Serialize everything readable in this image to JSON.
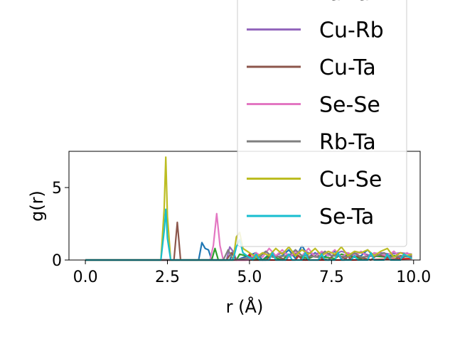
{
  "chart_data": {
    "type": "line",
    "title": "",
    "xlabel": "r (Å)",
    "ylabel": "g(r)",
    "xlim": [
      -0.5,
      10.2
    ],
    "ylim": [
      0,
      7.5
    ],
    "xticks": [
      0.0,
      2.5,
      5.0,
      7.5,
      10.0
    ],
    "xtick_labels": [
      "0.0",
      "2.5",
      "5.0",
      "7.5",
      "10.0"
    ],
    "yticks": [
      0,
      5
    ],
    "ytick_labels": [
      "0",
      "5"
    ],
    "grid": false,
    "legend_position": "upper-right (overflowing top)",
    "series": [
      {
        "name": "",
        "color": "#1f77b4",
        "x": [
          0,
          3.45,
          3.55,
          3.65,
          3.75,
          3.85,
          4.4,
          4.5,
          4.6,
          5.2,
          5.4,
          5.6,
          5.8,
          6.0,
          6.2,
          6.4,
          6.6,
          6.8,
          7.0,
          7.2,
          7.4,
          7.6,
          7.8,
          8.0,
          8.2,
          8.4,
          8.6,
          8.8,
          9.0,
          9.2,
          9.4,
          9.6,
          9.8,
          9.95
        ],
        "y": [
          0,
          0,
          1.2,
          0.8,
          0.7,
          0,
          0,
          0.6,
          0,
          0.5,
          0,
          0.4,
          0.2,
          0.3,
          0.7,
          0.1,
          1.0,
          0.2,
          0.5,
          0.1,
          0.4,
          0.6,
          0.1,
          0.4,
          0.2,
          0.3,
          0.7,
          0.2,
          0.4,
          0.1,
          0.6,
          0.1,
          0.3,
          0.2
        ]
      },
      {
        "name": "",
        "color": "#2ca02c",
        "x": [
          0,
          3.85,
          3.95,
          4.05,
          4.6,
          4.7,
          5.4,
          5.6,
          6.0,
          6.2,
          6.8,
          7.0,
          7.6,
          7.8,
          8.4,
          8.6,
          9.2,
          9.4,
          9.95
        ],
        "y": [
          0,
          0,
          0.8,
          0,
          0,
          0.4,
          0,
          0.3,
          0,
          0.4,
          0.1,
          0.3,
          0.1,
          0.4,
          0.1,
          0.3,
          0.2,
          0.3,
          0.2
        ]
      },
      {
        "name": "Ta-Ta",
        "color": "#d62728",
        "x": [
          0,
          4.9,
          5.0,
          5.1,
          6.4,
          6.5,
          6.6,
          7.9,
          8.0,
          8.1,
          9.95
        ],
        "y": [
          0,
          0,
          0.4,
          0,
          0,
          0.3,
          0,
          0,
          0.3,
          0,
          0.1
        ]
      },
      {
        "name": "Cu-Rb",
        "color": "#9467bd",
        "x": [
          0,
          4.3,
          4.4,
          4.5,
          4.6,
          5.3,
          5.5,
          5.7,
          6.0,
          6.3,
          6.6,
          6.9,
          7.2,
          7.5,
          7.8,
          8.1,
          8.4,
          8.7,
          9.0,
          9.3,
          9.6,
          9.95
        ],
        "y": [
          0,
          0,
          0.9,
          0.6,
          0,
          0.3,
          0.6,
          0.2,
          0.5,
          0.3,
          0.7,
          0.4,
          0.5,
          0.3,
          0.6,
          0.4,
          0.5,
          0.3,
          0.5,
          0.4,
          0.5,
          0.4
        ]
      },
      {
        "name": "Cu-Ta",
        "color": "#8c564b",
        "x": [
          0,
          2.7,
          2.8,
          2.9,
          4.3,
          4.45,
          4.6,
          5.5,
          5.7,
          6.1,
          6.3,
          6.7,
          6.9,
          7.4,
          7.6,
          8.0,
          8.2,
          8.7,
          8.9,
          9.4,
          9.6,
          9.95
        ],
        "y": [
          0,
          0,
          2.6,
          0,
          0,
          0.5,
          0,
          0,
          0.4,
          0,
          0.5,
          0,
          0.3,
          0,
          0.4,
          0,
          0.3,
          0,
          0.4,
          0,
          0.3,
          0.2
        ]
      },
      {
        "name": "Se-Se",
        "color": "#e377c2",
        "x": [
          0,
          3.8,
          3.9,
          4.0,
          4.1,
          4.2,
          5.0,
          5.2,
          5.4,
          5.6,
          5.8,
          6.0,
          6.2,
          6.4,
          6.6,
          6.8,
          7.0,
          7.2,
          7.4,
          7.6,
          7.8,
          8.0,
          8.2,
          8.4,
          8.6,
          8.8,
          9.0,
          9.2,
          9.4,
          9.6,
          9.8,
          9.95
        ],
        "y": [
          0,
          0,
          1.0,
          3.2,
          1.0,
          0,
          0,
          0.5,
          0.2,
          0.8,
          0.3,
          0.7,
          0.2,
          0.6,
          0.3,
          0.8,
          0.2,
          0.6,
          0.3,
          0.7,
          0.2,
          0.5,
          0.3,
          0.6,
          0.2,
          0.5,
          0.4,
          0.3,
          0.6,
          0.2,
          0.5,
          0.3
        ]
      },
      {
        "name": "Rb-Ta",
        "color": "#7f7f7f",
        "x": [
          0,
          4.2,
          4.35,
          4.5,
          5.3,
          5.5,
          5.7,
          6.2,
          6.4,
          6.6,
          7.1,
          7.3,
          7.5,
          8.0,
          8.2,
          8.4,
          8.9,
          9.1,
          9.3,
          9.95
        ],
        "y": [
          0,
          0,
          0.7,
          0,
          0.2,
          0.6,
          0.2,
          0.3,
          0.7,
          0.3,
          0.2,
          0.6,
          0.3,
          0.2,
          0.5,
          0.2,
          0.3,
          0.5,
          0.2,
          0.3
        ]
      },
      {
        "name": "Cu-Se",
        "color": "#bcbd22",
        "x": [
          0,
          2.3,
          2.4,
          2.45,
          2.5,
          2.6,
          4.5,
          4.6,
          4.7,
          4.8,
          5.2,
          5.4,
          5.6,
          5.8,
          6.0,
          6.2,
          6.4,
          6.6,
          6.8,
          7.0,
          7.2,
          7.4,
          7.6,
          7.8,
          8.0,
          8.2,
          8.4,
          8.6,
          8.8,
          9.0,
          9.2,
          9.4,
          9.6,
          9.8,
          9.95
        ],
        "y": [
          0,
          0,
          3.5,
          7.1,
          3.0,
          0,
          0,
          1.6,
          1.9,
          0.8,
          0.2,
          0.5,
          0.3,
          0.8,
          0.4,
          0.9,
          0.3,
          0.7,
          0.4,
          0.8,
          0.3,
          0.6,
          0.4,
          0.9,
          0.3,
          0.6,
          0.5,
          0.7,
          0.3,
          0.6,
          0.8,
          0.2,
          0.5,
          0.3,
          0.4
        ]
      },
      {
        "name": "Se-Ta",
        "color": "#17becf",
        "x": [
          0,
          2.3,
          2.4,
          2.45,
          2.5,
          2.6,
          4.5,
          4.6,
          4.7,
          4.8,
          5.1,
          5.2,
          5.3,
          5.6,
          5.7,
          5.8,
          6.1,
          6.2,
          6.3,
          6.6,
          6.7,
          6.8,
          7.1,
          7.2,
          7.3,
          7.6,
          7.7,
          7.8,
          8.1,
          8.2,
          8.3,
          8.6,
          8.7,
          8.8,
          9.1,
          9.2,
          9.3,
          9.6,
          9.7,
          9.95
        ],
        "y": [
          0,
          0,
          2.0,
          3.5,
          1.5,
          0,
          0,
          0.9,
          1.4,
          0.5,
          0,
          0.4,
          0,
          0,
          0.5,
          0,
          0,
          0.4,
          0,
          0,
          0.5,
          0,
          0,
          0.4,
          0,
          0,
          0.5,
          0,
          0,
          0.3,
          0,
          0,
          0.5,
          0,
          0,
          0.4,
          0,
          0,
          0.4,
          0.1
        ]
      }
    ]
  }
}
